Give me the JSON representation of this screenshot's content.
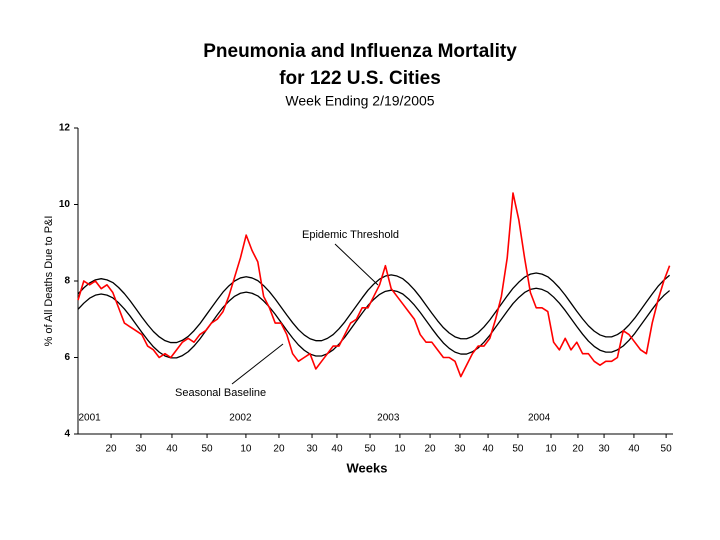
{
  "chart_data": {
    "type": "line",
    "title": "Pneumonia and Influenza Mortality",
    "title_line2": "for 122 U.S. Cities",
    "subtitle": "Week Ending 2/19/2005",
    "x_label": "Weeks",
    "y_label": "% of All Deaths Due to P&I",
    "annotations": [
      "Epidemic Threshold",
      "Seasonal Baseline"
    ],
    "xlim": [
      11,
      216
    ],
    "ylim": [
      4,
      12
    ],
    "yticks": [
      4,
      6,
      8,
      10,
      12
    ],
    "xticks": [
      {
        "value": 22.4,
        "label": "20"
      },
      {
        "value": 32.7,
        "label": "30"
      },
      {
        "value": 43.4,
        "label": "40"
      },
      {
        "value": 55.5,
        "label": "50"
      },
      {
        "value": 68.9,
        "label": "10"
      },
      {
        "value": 80.3,
        "label": "20"
      },
      {
        "value": 91.7,
        "label": "30"
      },
      {
        "value": 100.3,
        "label": "40"
      },
      {
        "value": 111.7,
        "label": "50"
      },
      {
        "value": 122,
        "label": "10"
      },
      {
        "value": 132.4,
        "label": "20"
      },
      {
        "value": 142.7,
        "label": "30"
      },
      {
        "value": 152.4,
        "label": "40"
      },
      {
        "value": 162.7,
        "label": "50"
      },
      {
        "value": 174.1,
        "label": "10"
      },
      {
        "value": 183.4,
        "label": "20"
      },
      {
        "value": 192.4,
        "label": "30"
      },
      {
        "value": 202.7,
        "label": "40"
      },
      {
        "value": 213.8,
        "label": "50"
      }
    ],
    "year_labels": [
      {
        "value": 15,
        "label": "2001"
      },
      {
        "value": 67,
        "label": "2002"
      },
      {
        "value": 118,
        "label": "2003"
      },
      {
        "value": 170,
        "label": "2004"
      }
    ],
    "x": [
      11,
      13,
      15,
      17,
      19,
      21,
      23,
      25,
      27,
      29,
      31,
      33,
      35,
      37,
      39,
      41,
      43,
      45,
      47,
      49,
      51,
      53,
      55,
      57,
      59,
      61,
      63,
      65,
      67,
      69,
      71,
      73,
      75,
      77,
      79,
      81,
      83,
      85,
      87,
      89,
      91,
      93,
      95,
      97,
      99,
      101,
      103,
      105,
      107,
      109,
      111,
      113,
      115,
      117,
      119,
      121,
      123,
      125,
      127,
      129,
      131,
      133,
      135,
      137,
      139,
      141,
      143,
      145,
      147,
      149,
      151,
      153,
      155,
      157,
      159,
      161,
      163,
      165,
      167,
      169,
      171,
      173,
      175,
      177,
      179,
      181,
      183,
      185,
      187,
      189,
      191,
      193,
      195,
      197,
      199,
      201,
      203,
      205,
      207,
      209,
      211,
      213,
      215
    ],
    "series": [
      {
        "name": "Epidemic Threshold",
        "color": "#000000",
        "values": [
          7.66,
          7.82,
          7.95,
          8.03,
          8.06,
          8.03,
          7.96,
          7.83,
          7.67,
          7.48,
          7.27,
          7.06,
          6.86,
          6.68,
          6.54,
          6.44,
          6.39,
          6.39,
          6.45,
          6.55,
          6.7,
          6.88,
          7.09,
          7.3,
          7.51,
          7.71,
          7.87,
          8.0,
          8.08,
          8.11,
          8.08,
          8.01,
          7.88,
          7.72,
          7.53,
          7.32,
          7.11,
          6.91,
          6.73,
          6.59,
          6.49,
          6.44,
          6.44,
          6.5,
          6.6,
          6.75,
          6.93,
          7.14,
          7.35,
          7.56,
          7.76,
          7.92,
          8.05,
          8.13,
          8.16,
          8.13,
          8.06,
          7.93,
          7.77,
          7.58,
          7.37,
          7.16,
          6.96,
          6.78,
          6.64,
          6.54,
          6.49,
          6.49,
          6.55,
          6.65,
          6.8,
          6.98,
          7.19,
          7.4,
          7.61,
          7.81,
          7.97,
          8.1,
          8.18,
          8.21,
          8.18,
          8.11,
          7.98,
          7.82,
          7.63,
          7.42,
          7.21,
          7.01,
          6.83,
          6.69,
          6.59,
          6.54,
          6.54,
          6.6,
          6.7,
          6.85,
          7.03,
          7.24,
          7.45,
          7.66,
          7.86,
          8.02,
          8.15
        ]
      },
      {
        "name": "Seasonal Baseline",
        "color": "#000000",
        "values": [
          7.26,
          7.42,
          7.55,
          7.63,
          7.66,
          7.63,
          7.56,
          7.43,
          7.27,
          7.08,
          6.87,
          6.66,
          6.46,
          6.28,
          6.14,
          6.04,
          5.99,
          5.99,
          6.05,
          6.15,
          6.3,
          6.48,
          6.69,
          6.9,
          7.11,
          7.31,
          7.47,
          7.6,
          7.68,
          7.71,
          7.68,
          7.61,
          7.48,
          7.32,
          7.13,
          6.92,
          6.71,
          6.51,
          6.33,
          6.19,
          6.09,
          6.04,
          6.04,
          6.1,
          6.2,
          6.35,
          6.53,
          6.74,
          6.95,
          7.16,
          7.36,
          7.52,
          7.65,
          7.73,
          7.76,
          7.73,
          7.66,
          7.53,
          7.37,
          7.18,
          6.97,
          6.76,
          6.56,
          6.38,
          6.24,
          6.14,
          6.09,
          6.09,
          6.15,
          6.25,
          6.4,
          6.58,
          6.79,
          7.0,
          7.21,
          7.41,
          7.57,
          7.7,
          7.78,
          7.81,
          7.78,
          7.71,
          7.58,
          7.42,
          7.23,
          7.02,
          6.81,
          6.61,
          6.43,
          6.29,
          6.19,
          6.14,
          6.14,
          6.2,
          6.3,
          6.45,
          6.63,
          6.84,
          7.05,
          7.26,
          7.46,
          7.62,
          7.75
        ]
      },
      {
        "name": "% P&I",
        "color": "#ff0000",
        "values": [
          7.5,
          8.0,
          7.9,
          8.0,
          7.8,
          7.9,
          7.7,
          7.3,
          6.9,
          6.8,
          6.7,
          6.6,
          6.3,
          6.2,
          6.0,
          6.1,
          6.0,
          6.2,
          6.4,
          6.5,
          6.4,
          6.6,
          6.7,
          6.9,
          7.0,
          7.2,
          7.6,
          8.1,
          8.6,
          9.2,
          8.8,
          8.5,
          7.6,
          7.3,
          6.9,
          6.9,
          6.6,
          6.1,
          5.9,
          6.0,
          6.1,
          5.7,
          5.9,
          6.1,
          6.3,
          6.3,
          6.6,
          6.9,
          7.0,
          7.3,
          7.3,
          7.6,
          7.9,
          8.4,
          7.8,
          7.6,
          7.4,
          7.2,
          7.0,
          6.6,
          6.4,
          6.4,
          6.2,
          6.0,
          6.0,
          5.9,
          5.5,
          5.8,
          6.1,
          6.3,
          6.3,
          6.5,
          7.0,
          7.6,
          8.6,
          10.3,
          9.6,
          8.6,
          7.7,
          7.3,
          7.3,
          7.2,
          6.4,
          6.2,
          6.5,
          6.2,
          6.4,
          6.1,
          6.1,
          5.9,
          5.8,
          5.9,
          5.9,
          6.0,
          6.7,
          6.6,
          6.4,
          6.2,
          6.1,
          6.9,
          7.5,
          8.0,
          8.4
        ]
      }
    ]
  }
}
